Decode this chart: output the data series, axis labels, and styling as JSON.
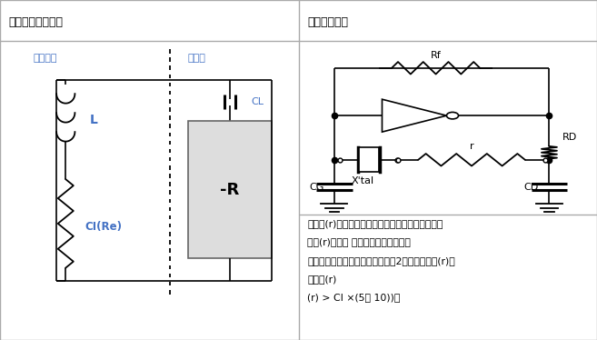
{
  "title_left": "晶体单元和振荡器",
  "title_right": "负极电阻检查",
  "label_crystal": "晶体单元",
  "label_oscillator": "振荡器",
  "label_L": "L",
  "label_CI": "CI(Re)",
  "label_CL": "CL",
  "label_negR": "-R",
  "label_Rf": "Rf",
  "label_RD": "RD",
  "label_r": "r",
  "label_xtal": "X'tal",
  "label_CG": "CG",
  "label_CD": "CD",
  "text_lines": [
    "将电阻(r)跟晶振晶体单元按串联方式连接到电路。",
    "调整(r)，使得 振荡发生（或停止）。",
    "当振荡刚启动（或停止）时，如（2）所述，测量(r)。",
    "推荐的(r)",
    "(r) > CI ×(5至 10))。"
  ],
  "bg_color": "#ffffff",
  "circuit_color": "#000000",
  "label_color_blue": "#4472C4",
  "label_color_black": "#000000"
}
